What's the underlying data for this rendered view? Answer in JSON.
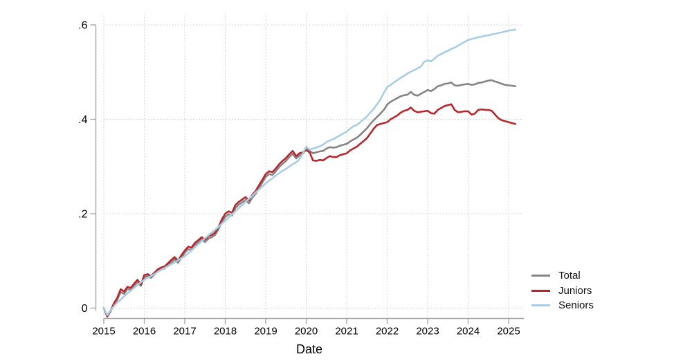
{
  "chart_data": {
    "type": "line",
    "title": "",
    "xlabel": "Date",
    "ylabel": "",
    "x_start": 2015.0,
    "x_interval_years": 0.0833333,
    "x_end": 2025.1667,
    "xlim": [
      2015,
      2025.35
    ],
    "ylim": [
      -0.03,
      0.62
    ],
    "grid": "dotted, both axes",
    "legend_position": "right-middle",
    "x_axis": {
      "tick_values": [
        2015,
        2016,
        2017,
        2018,
        2019,
        2020,
        2021,
        2022,
        2023,
        2024,
        2025
      ],
      "tick_labels": [
        "2015",
        "2016",
        "2017",
        "2018",
        "2019",
        "2020",
        "2021",
        "2022",
        "2023",
        "2024",
        "2025"
      ]
    },
    "y_axis": {
      "tick_values": [
        0,
        0.2,
        0.4,
        0.6
      ],
      "tick_labels": [
        "0",
        ".2",
        ".4",
        ".6"
      ]
    },
    "series": [
      {
        "name": "Total",
        "color": "#848484",
        "values": [
          0.0,
          -0.018,
          -0.007,
          0.007,
          0.018,
          0.034,
          0.03,
          0.04,
          0.039,
          0.048,
          0.055,
          0.047,
          0.065,
          0.068,
          0.064,
          0.071,
          0.078,
          0.082,
          0.084,
          0.091,
          0.097,
          0.103,
          0.096,
          0.107,
          0.117,
          0.125,
          0.123,
          0.133,
          0.139,
          0.145,
          0.14,
          0.147,
          0.15,
          0.155,
          0.167,
          0.182,
          0.193,
          0.199,
          0.196,
          0.212,
          0.219,
          0.224,
          0.229,
          0.222,
          0.234,
          0.242,
          0.254,
          0.266,
          0.278,
          0.284,
          0.282,
          0.29,
          0.299,
          0.306,
          0.312,
          0.32,
          0.327,
          0.317,
          0.323,
          0.327,
          0.337,
          0.333,
          0.328,
          0.33,
          0.332,
          0.333,
          0.338,
          0.341,
          0.34,
          0.341,
          0.344,
          0.346,
          0.348,
          0.353,
          0.357,
          0.361,
          0.367,
          0.374,
          0.381,
          0.39,
          0.398,
          0.405,
          0.412,
          0.42,
          0.431,
          0.437,
          0.441,
          0.445,
          0.449,
          0.451,
          0.452,
          0.458,
          0.452,
          0.45,
          0.454,
          0.458,
          0.462,
          0.46,
          0.464,
          0.47,
          0.472,
          0.475,
          0.476,
          0.478,
          0.472,
          0.471,
          0.473,
          0.474,
          0.475,
          0.473,
          0.474,
          0.477,
          0.478,
          0.48,
          0.482,
          0.483,
          0.48,
          0.478,
          0.475,
          0.473,
          0.472,
          0.471,
          0.47
        ]
      },
      {
        "name": "Juniors",
        "color": "#b8262b",
        "values": [
          0.0,
          -0.018,
          -0.006,
          0.01,
          0.022,
          0.04,
          0.035,
          0.045,
          0.043,
          0.052,
          0.06,
          0.05,
          0.07,
          0.072,
          0.068,
          0.075,
          0.082,
          0.086,
          0.088,
          0.095,
          0.102,
          0.108,
          0.1,
          0.112,
          0.122,
          0.13,
          0.128,
          0.138,
          0.144,
          0.15,
          0.145,
          0.152,
          0.155,
          0.16,
          0.172,
          0.188,
          0.2,
          0.205,
          0.202,
          0.218,
          0.225,
          0.23,
          0.235,
          0.228,
          0.24,
          0.248,
          0.26,
          0.272,
          0.284,
          0.29,
          0.288,
          0.296,
          0.305,
          0.312,
          0.318,
          0.326,
          0.333,
          0.322,
          0.328,
          0.33,
          0.335,
          0.33,
          0.313,
          0.312,
          0.314,
          0.313,
          0.318,
          0.322,
          0.32,
          0.32,
          0.324,
          0.326,
          0.328,
          0.334,
          0.338,
          0.342,
          0.348,
          0.354,
          0.36,
          0.37,
          0.38,
          0.388,
          0.39,
          0.392,
          0.394,
          0.4,
          0.404,
          0.408,
          0.414,
          0.418,
          0.42,
          0.425,
          0.418,
          0.415,
          0.416,
          0.417,
          0.418,
          0.413,
          0.412,
          0.42,
          0.424,
          0.428,
          0.43,
          0.432,
          0.42,
          0.415,
          0.416,
          0.417,
          0.417,
          0.41,
          0.412,
          0.42,
          0.421,
          0.42,
          0.42,
          0.418,
          0.41,
          0.402,
          0.398,
          0.396,
          0.394,
          0.392,
          0.39
        ]
      },
      {
        "name": "Seniors",
        "color": "#a9cde3",
        "values": [
          0.0,
          -0.015,
          -0.005,
          0.004,
          0.012,
          0.018,
          0.025,
          0.031,
          0.037,
          0.043,
          0.049,
          0.055,
          0.06,
          0.064,
          0.068,
          0.072,
          0.077,
          0.081,
          0.085,
          0.089,
          0.093,
          0.097,
          0.101,
          0.106,
          0.11,
          0.116,
          0.122,
          0.129,
          0.135,
          0.142,
          0.148,
          0.154,
          0.16,
          0.166,
          0.172,
          0.179,
          0.185,
          0.192,
          0.199,
          0.205,
          0.212,
          0.218,
          0.225,
          0.231,
          0.238,
          0.245,
          0.251,
          0.258,
          0.264,
          0.27,
          0.275,
          0.281,
          0.286,
          0.291,
          0.295,
          0.3,
          0.305,
          0.309,
          0.315,
          0.328,
          0.342,
          0.336,
          0.338,
          0.34,
          0.343,
          0.346,
          0.352,
          0.355,
          0.358,
          0.362,
          0.366,
          0.37,
          0.374,
          0.38,
          0.385,
          0.388,
          0.394,
          0.4,
          0.406,
          0.414,
          0.422,
          0.432,
          0.442,
          0.456,
          0.468,
          0.473,
          0.478,
          0.483,
          0.488,
          0.492,
          0.497,
          0.501,
          0.504,
          0.508,
          0.512,
          0.522,
          0.525,
          0.523,
          0.528,
          0.535,
          0.538,
          0.542,
          0.545,
          0.549,
          0.552,
          0.556,
          0.56,
          0.564,
          0.568,
          0.57,
          0.572,
          0.574,
          0.575,
          0.577,
          0.578,
          0.58,
          0.581,
          0.583,
          0.584,
          0.586,
          0.588,
          0.589,
          0.59
        ]
      }
    ]
  },
  "colors": {
    "background": "#ffffff",
    "axis": "#a6a6a6",
    "grid": "#cccccc",
    "tick_text": "#000000"
  }
}
